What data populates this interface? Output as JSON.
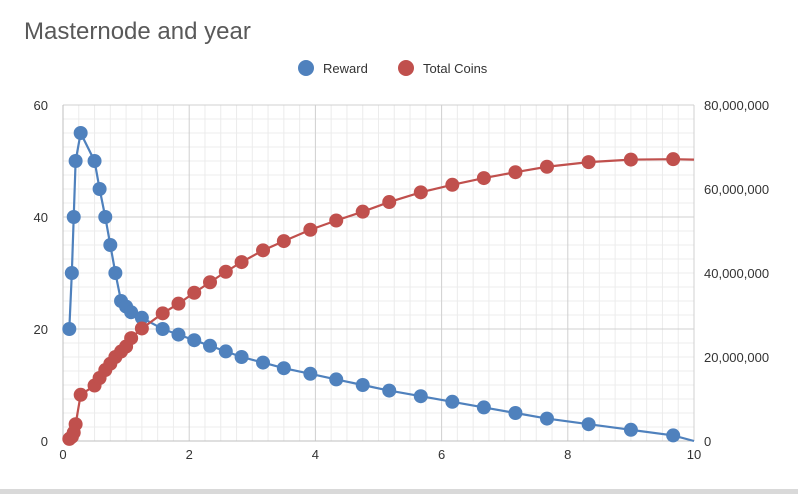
{
  "chart_data": {
    "type": "line",
    "title": "Masternode and year",
    "xlabel": "",
    "ylabel": "",
    "xlim": [
      0,
      10
    ],
    "ylim": [
      0,
      60
    ],
    "y2lim": [
      0,
      80000000
    ],
    "x_ticks": [
      "0",
      "2",
      "4",
      "6",
      "8",
      "10"
    ],
    "y_ticks": [
      "0",
      "20",
      "40",
      "60"
    ],
    "y2_ticks": [
      "0",
      "20,000,000",
      "40,000,000",
      "60,000,000",
      "80,000,000"
    ],
    "grid": true,
    "legend": "top",
    "series": [
      {
        "name": "Reward",
        "axis": "left",
        "color": "#4f81bd",
        "x": [
          0.1,
          0.14,
          0.17,
          0.2,
          0.28,
          0.5,
          0.58,
          0.67,
          0.75,
          0.83,
          0.92,
          1.0,
          1.08,
          1.25,
          1.58,
          1.83,
          2.08,
          2.33,
          2.58,
          2.83,
          3.17,
          3.5,
          3.92,
          4.33,
          4.75,
          5.17,
          5.67,
          6.17,
          6.67,
          7.17,
          7.67,
          8.33,
          9.0,
          9.67,
          10.0
        ],
        "y": [
          20,
          30,
          40,
          50,
          55,
          50,
          45,
          40,
          35,
          30,
          25,
          24,
          23,
          22,
          20,
          19,
          18,
          17,
          16,
          15,
          14,
          13,
          12,
          11,
          10,
          9,
          8,
          7,
          6,
          5,
          4,
          3,
          2,
          1,
          0
        ]
      },
      {
        "name": "Total Coins",
        "axis": "right",
        "color": "#c0504d",
        "x": [
          0.1,
          0.14,
          0.17,
          0.2,
          0.28,
          0.5,
          0.58,
          0.67,
          0.75,
          0.83,
          0.92,
          1.0,
          1.08,
          1.25,
          1.58,
          1.83,
          2.08,
          2.33,
          2.58,
          2.83,
          3.17,
          3.5,
          3.92,
          4.33,
          4.75,
          5.17,
          5.67,
          6.17,
          6.67,
          7.17,
          7.67,
          8.33,
          9.0,
          9.67,
          10.0
        ],
        "y": [
          500000,
          1000000,
          2000000,
          4000000,
          11000000,
          13200000,
          15000000,
          16900000,
          18400000,
          20000000,
          21300000,
          22500000,
          24500000,
          26800000,
          30400000,
          32700000,
          35300000,
          37800000,
          40300000,
          42600000,
          45400000,
          47600000,
          50300000,
          52500000,
          54600000,
          56900000,
          59200000,
          61000000,
          62600000,
          64000000,
          65300000,
          66400000,
          67000000,
          67100000,
          67000000
        ]
      }
    ]
  }
}
